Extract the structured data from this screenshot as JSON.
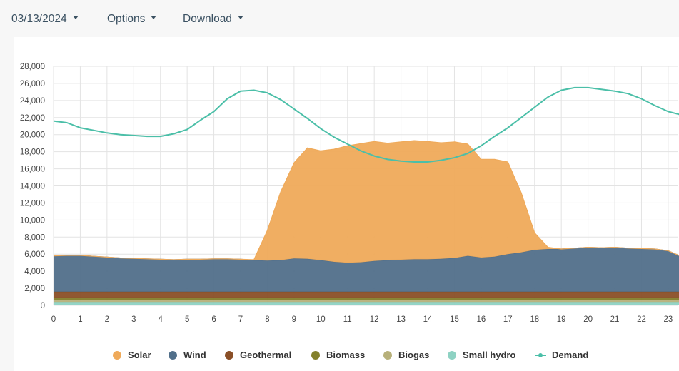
{
  "toolbar": {
    "date": "03/13/2024",
    "options_label": "Options",
    "download_label": "Download"
  },
  "chart_data": {
    "type": "area",
    "stacked": true,
    "x": [
      0,
      0.5,
      1,
      1.5,
      2,
      2.5,
      3,
      3.5,
      4,
      4.5,
      5,
      5.5,
      6,
      6.5,
      7,
      7.5,
      8,
      8.5,
      9,
      9.5,
      10,
      10.5,
      11,
      11.5,
      12,
      12.5,
      13,
      13.5,
      14,
      14.5,
      15,
      15.5,
      16,
      16.5,
      17,
      17.5,
      18,
      18.5,
      19,
      19.5,
      20,
      20.5,
      21,
      21.5,
      22,
      22.5,
      23,
      23.5
    ],
    "x_ticks": [
      "0",
      "1",
      "2",
      "3",
      "4",
      "5",
      "6",
      "7",
      "8",
      "9",
      "10",
      "11",
      "12",
      "13",
      "14",
      "15",
      "16",
      "17",
      "18",
      "19",
      "20",
      "21",
      "22",
      "23"
    ],
    "ylim": [
      0,
      28000
    ],
    "y_ticks": [
      "0",
      "2,000",
      "4,000",
      "6,000",
      "8,000",
      "10,000",
      "12,000",
      "14,000",
      "16,000",
      "18,000",
      "20,000",
      "22,000",
      "24,000",
      "26,000",
      "28,000"
    ],
    "grid": true,
    "legend_position": "bottom",
    "series": [
      {
        "name": "Small hydro",
        "color": "#8ed2c3",
        "values": [
          400,
          400,
          400,
          400,
          400,
          400,
          400,
          400,
          400,
          400,
          400,
          400,
          400,
          400,
          400,
          400,
          400,
          400,
          400,
          400,
          400,
          400,
          400,
          400,
          400,
          400,
          400,
          400,
          400,
          400,
          400,
          400,
          400,
          400,
          400,
          400,
          400,
          400,
          400,
          400,
          400,
          400,
          400,
          400,
          400,
          400,
          400,
          400
        ]
      },
      {
        "name": "Biogas",
        "color": "#b7b07a",
        "values": [
          250,
          250,
          250,
          250,
          250,
          250,
          250,
          250,
          250,
          250,
          250,
          250,
          250,
          250,
          250,
          250,
          250,
          250,
          250,
          250,
          250,
          250,
          250,
          250,
          250,
          250,
          250,
          250,
          250,
          250,
          250,
          250,
          250,
          250,
          250,
          250,
          250,
          250,
          250,
          250,
          250,
          250,
          250,
          250,
          250,
          250,
          250,
          250
        ]
      },
      {
        "name": "Biomass",
        "color": "#83802b",
        "values": [
          250,
          250,
          250,
          250,
          250,
          250,
          250,
          250,
          250,
          250,
          250,
          250,
          250,
          250,
          250,
          250,
          250,
          250,
          250,
          250,
          250,
          250,
          250,
          250,
          250,
          250,
          250,
          250,
          250,
          250,
          250,
          250,
          250,
          250,
          250,
          250,
          250,
          250,
          250,
          250,
          250,
          250,
          250,
          250,
          250,
          250,
          250,
          250
        ]
      },
      {
        "name": "Geothermal",
        "color": "#8a4f27",
        "values": [
          700,
          700,
          700,
          700,
          700,
          700,
          700,
          700,
          700,
          700,
          700,
          700,
          700,
          700,
          700,
          700,
          700,
          700,
          700,
          700,
          700,
          700,
          700,
          700,
          700,
          700,
          700,
          700,
          700,
          700,
          700,
          700,
          700,
          700,
          700,
          700,
          700,
          700,
          700,
          700,
          700,
          700,
          700,
          700,
          700,
          700,
          700,
          700
        ]
      },
      {
        "name": "Wind",
        "color": "#516f8a",
        "values": [
          4200,
          4250,
          4250,
          4150,
          4050,
          3950,
          3900,
          3850,
          3800,
          3750,
          3800,
          3800,
          3850,
          3850,
          3800,
          3700,
          3650,
          3700,
          3900,
          3850,
          3700,
          3500,
          3400,
          3450,
          3600,
          3700,
          3750,
          3800,
          3800,
          3850,
          3950,
          4200,
          4000,
          4100,
          4400,
          4600,
          4900,
          5000,
          5000,
          5100,
          5200,
          5150,
          5200,
          5100,
          5050,
          5000,
          4800,
          4100
        ]
      },
      {
        "name": "Solar",
        "color": "#efaa5a",
        "values": [
          0,
          0,
          0,
          0,
          0,
          0,
          0,
          0,
          0,
          0,
          0,
          0,
          0,
          0,
          0,
          50,
          3500,
          8000,
          11200,
          13000,
          12800,
          13200,
          13700,
          13900,
          14000,
          13700,
          13800,
          13900,
          13800,
          13600,
          13600,
          13100,
          11500,
          11400,
          10800,
          7000,
          2000,
          200,
          0,
          0,
          0,
          0,
          0,
          0,
          0,
          0,
          0,
          0
        ]
      },
      {
        "name": "Demand",
        "color": "#4bbfa8",
        "type": "line",
        "values": [
          21600,
          21400,
          20800,
          20500,
          20200,
          20000,
          19900,
          19800,
          19800,
          20100,
          20600,
          21700,
          22700,
          24200,
          25100,
          25200,
          24900,
          24100,
          23000,
          21900,
          20700,
          19700,
          18900,
          18100,
          17500,
          17100,
          16900,
          16800,
          16800,
          17000,
          17300,
          17800,
          18700,
          19800,
          20800,
          22000,
          23200,
          24400,
          25200,
          25500,
          25500,
          25300,
          25100,
          24800,
          24200,
          23400,
          22700,
          22300
        ]
      }
    ]
  },
  "legend": [
    {
      "label": "Solar",
      "color": "#efaa5a",
      "kind": "dot"
    },
    {
      "label": "Wind",
      "color": "#516f8a",
      "kind": "dot"
    },
    {
      "label": "Geothermal",
      "color": "#8a4f27",
      "kind": "dot"
    },
    {
      "label": "Biomass",
      "color": "#83802b",
      "kind": "dot"
    },
    {
      "label": "Biogas",
      "color": "#b7b07a",
      "kind": "dot"
    },
    {
      "label": "Small hydro",
      "color": "#8ed2c3",
      "kind": "dot"
    },
    {
      "label": "Demand",
      "color": "#4bbfa8",
      "kind": "line"
    }
  ]
}
